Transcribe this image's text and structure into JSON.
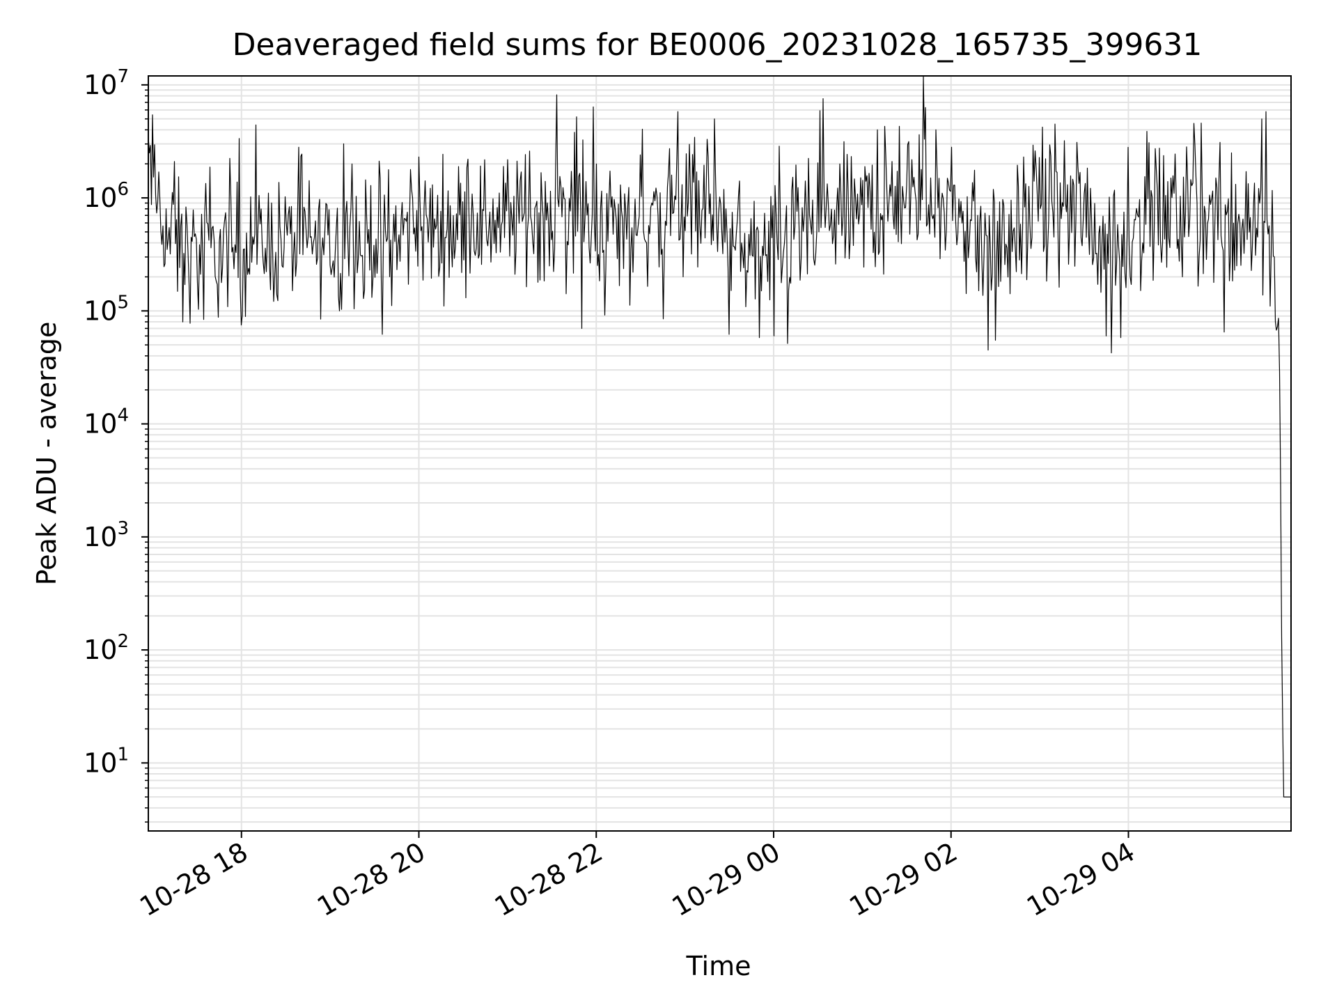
{
  "chart_data": {
    "type": "line",
    "title": "Deaveraged field sums for BE0006_20231028_165735_399631",
    "xlabel": "Time",
    "ylabel": "Peak ADU - average",
    "yscale": "log",
    "ylim": [
      2.5,
      12000000
    ],
    "xlim": [
      "2023-10-28 16:57",
      "2023-10-29 05:50"
    ],
    "grid": true,
    "colors": {
      "line": "#000000",
      "grid": "#e3e3e3",
      "axes": "#000000"
    },
    "x_ticks": [
      {
        "t": "2023-10-28 18:00",
        "label": "10-28 18"
      },
      {
        "t": "2023-10-28 20:00",
        "label": "10-28 20"
      },
      {
        "t": "2023-10-28 22:00",
        "label": "10-28 22"
      },
      {
        "t": "2023-10-29 00:00",
        "label": "10-29 00"
      },
      {
        "t": "2023-10-29 02:00",
        "label": "10-29 02"
      },
      {
        "t": "2023-10-29 04:00",
        "label": "10-29 04"
      }
    ],
    "y_ticks": [
      {
        "v": 10,
        "base": "10",
        "exp": "1"
      },
      {
        "v": 100,
        "base": "10",
        "exp": "2"
      },
      {
        "v": 1000,
        "base": "10",
        "exp": "3"
      },
      {
        "v": 10000,
        "base": "10",
        "exp": "4"
      },
      {
        "v": 100000,
        "base": "10",
        "exp": "5"
      },
      {
        "v": 1000000,
        "base": "10",
        "exp": "6"
      },
      {
        "v": 10000000,
        "base": "10",
        "exp": "7"
      }
    ],
    "series": [
      {
        "color": "#000000",
        "points": [
          [
            "2023-10-28 16:57",
            2000000
          ],
          [
            "2023-10-28 17:00",
            1500000
          ],
          [
            "2023-10-28 17:05",
            800000
          ],
          [
            "2023-10-28 17:10",
            450000
          ],
          [
            "2023-10-28 17:20",
            350000
          ],
          [
            "2023-10-28 17:30",
            300000
          ],
          [
            "2023-10-28 17:45",
            320000
          ],
          [
            "2023-10-28 18:00",
            380000
          ],
          [
            "2023-10-28 18:15",
            400000
          ],
          [
            "2023-10-28 18:30",
            420000
          ],
          [
            "2023-10-28 18:45",
            400000
          ],
          [
            "2023-10-28 19:00",
            380000
          ],
          [
            "2023-10-28 19:15",
            420000
          ],
          [
            "2023-10-28 19:30",
            450000
          ],
          [
            "2023-10-28 19:45",
            480000
          ],
          [
            "2023-10-28 20:00",
            520000
          ],
          [
            "2023-10-28 20:15",
            560000
          ],
          [
            "2023-10-28 20:30",
            600000
          ],
          [
            "2023-10-28 20:45",
            650000
          ],
          [
            "2023-10-28 21:00",
            650000
          ],
          [
            "2023-10-28 21:15",
            700000
          ],
          [
            "2023-10-28 21:30",
            750000
          ],
          [
            "2023-10-28 21:45",
            700000
          ],
          [
            "2023-10-28 22:00",
            600000
          ],
          [
            "2023-10-28 22:15",
            550000
          ],
          [
            "2023-10-28 22:30",
            600000
          ],
          [
            "2023-10-28 22:45",
            650000
          ],
          [
            "2023-10-28 23:00",
            800000
          ],
          [
            "2023-10-28 23:10",
            1000000
          ],
          [
            "2023-10-28 23:20",
            700000
          ],
          [
            "2023-10-28 23:30",
            400000
          ],
          [
            "2023-10-28 23:45",
            350000
          ],
          [
            "2023-10-29 00:00",
            300000
          ],
          [
            "2023-10-29 00:10",
            350000
          ],
          [
            "2023-10-29 00:20",
            500000
          ],
          [
            "2023-10-29 00:35",
            600000
          ],
          [
            "2023-10-29 00:50",
            700000
          ],
          [
            "2023-10-29 01:00",
            800000
          ],
          [
            "2023-10-29 01:15",
            900000
          ],
          [
            "2023-10-29 01:30",
            1000000
          ],
          [
            "2023-10-29 01:45",
            1000000
          ],
          [
            "2023-10-29 02:00",
            800000
          ],
          [
            "2023-10-29 02:15",
            500000
          ],
          [
            "2023-10-29 02:30",
            350000
          ],
          [
            "2023-10-29 02:45",
            500000
          ],
          [
            "2023-10-29 03:00",
            800000
          ],
          [
            "2023-10-29 03:15",
            900000
          ],
          [
            "2023-10-29 03:30",
            700000
          ],
          [
            "2023-10-29 03:45",
            400000
          ],
          [
            "2023-10-29 04:00",
            500000
          ],
          [
            "2023-10-29 04:10",
            650000
          ],
          [
            "2023-10-29 04:30",
            700000
          ],
          [
            "2023-10-29 04:45",
            750000
          ],
          [
            "2023-10-29 05:00",
            650000
          ],
          [
            "2023-10-29 05:15",
            600000
          ],
          [
            "2023-10-29 05:30",
            700000
          ],
          [
            "2023-10-29 05:38",
            500000
          ],
          [
            "2023-10-29 05:41",
            100000
          ],
          [
            "2023-10-29 05:42",
            60000
          ],
          [
            "2023-10-29 05:43",
            2500
          ],
          [
            "2023-10-29 05:43",
            700
          ],
          [
            "2023-10-29 05:44",
            50
          ],
          [
            "2023-10-29 05:45",
            5
          ],
          [
            "2023-10-29 05:50",
            5
          ]
        ],
        "peaks": [
          [
            "2023-10-28 16:58",
            2500000
          ],
          [
            "2023-10-28 17:15",
            2100000
          ],
          [
            "2023-10-28 19:15",
            2000000
          ],
          [
            "2023-10-28 20:00",
            2300000
          ],
          [
            "2023-10-28 21:15",
            2600000
          ],
          [
            "2023-10-28 21:45",
            3800000
          ],
          [
            "2023-10-28 22:00",
            2000000
          ],
          [
            "2023-10-28 22:30",
            2400000
          ],
          [
            "2023-10-28 22:55",
            5800000
          ],
          [
            "2023-10-28 23:15",
            3300000
          ],
          [
            "2023-10-28 23:20",
            5000000
          ],
          [
            "2023-10-29 00:45",
            2000000
          ],
          [
            "2023-10-29 01:10",
            4000000
          ],
          [
            "2023-10-29 01:25",
            4300000
          ],
          [
            "2023-10-29 01:43",
            6300000
          ],
          [
            "2023-10-29 01:50",
            4000000
          ],
          [
            "2023-10-29 02:30",
            2000000
          ],
          [
            "2023-10-29 03:10",
            4500000
          ],
          [
            "2023-10-29 03:25",
            3100000
          ],
          [
            "2023-10-29 04:00",
            2800000
          ],
          [
            "2023-10-29 04:45",
            2900000
          ],
          [
            "2023-10-29 05:10",
            2500000
          ],
          [
            "2023-10-29 05:30",
            5000000
          ],
          [
            "2023-10-29 05:33",
            5800000
          ]
        ],
        "dips": [
          [
            "2023-10-28 17:20",
            80000
          ],
          [
            "2023-10-28 18:00",
            75000
          ],
          [
            "2023-10-28 19:35",
            62000
          ],
          [
            "2023-10-28 21:50",
            70000
          ],
          [
            "2023-10-28 22:45",
            85000
          ],
          [
            "2023-10-28 23:30",
            62000
          ],
          [
            "2023-10-28 23:50",
            58000
          ],
          [
            "2023-10-29 00:00",
            60000
          ],
          [
            "2023-10-29 02:25",
            45000
          ],
          [
            "2023-10-29 02:30",
            55000
          ],
          [
            "2023-10-29 03:45",
            60000
          ],
          [
            "2023-10-29 03:55",
            58000
          ],
          [
            "2023-10-29 05:05",
            65000
          ]
        ]
      }
    ]
  }
}
